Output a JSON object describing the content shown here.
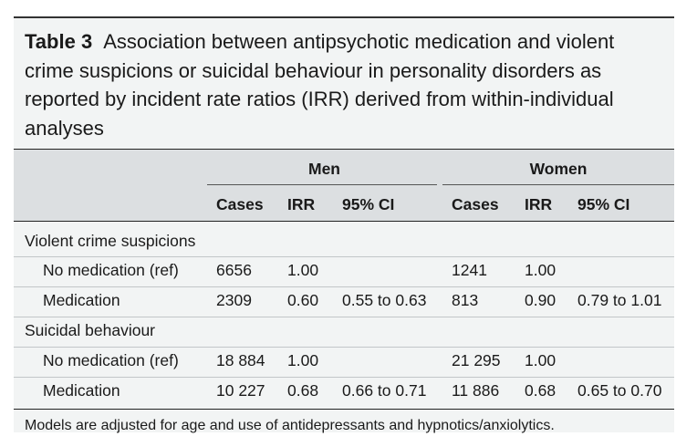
{
  "caption": {
    "label": "Table 3",
    "text": "Association between antipsychotic medication and violent crime suspicions or suicidal behaviour in personality disorders as reported by incident rate ratios (IRR) derived from within-individual analyses"
  },
  "groups": [
    "Men",
    "Women"
  ],
  "columns": [
    "Cases",
    "IRR",
    "95% CI",
    "Cases",
    "IRR",
    "95% CI"
  ],
  "sections": [
    {
      "title": "Violent crime suspicions",
      "rows": [
        {
          "label": "No medication (ref)",
          "cells": [
            "6656",
            "1.00",
            "",
            "1241",
            "1.00",
            ""
          ]
        },
        {
          "label": "Medication",
          "cells": [
            "2309",
            "0.60",
            "0.55 to 0.63",
            "813",
            "0.90",
            "0.79 to 1.01"
          ]
        }
      ]
    },
    {
      "title": "Suicidal behaviour",
      "rows": [
        {
          "label": "No medication (ref)",
          "cells": [
            "18 884",
            "1.00",
            "",
            "21 295",
            "1.00",
            ""
          ]
        },
        {
          "label": "Medication",
          "cells": [
            "10 227",
            "0.68",
            "0.66 to 0.71",
            "11 886",
            "0.68",
            "0.65 to 0.70"
          ]
        }
      ]
    }
  ],
  "footnote": "Models are adjusted for age and use of antidepressants and hypnotics/anxiolytics."
}
